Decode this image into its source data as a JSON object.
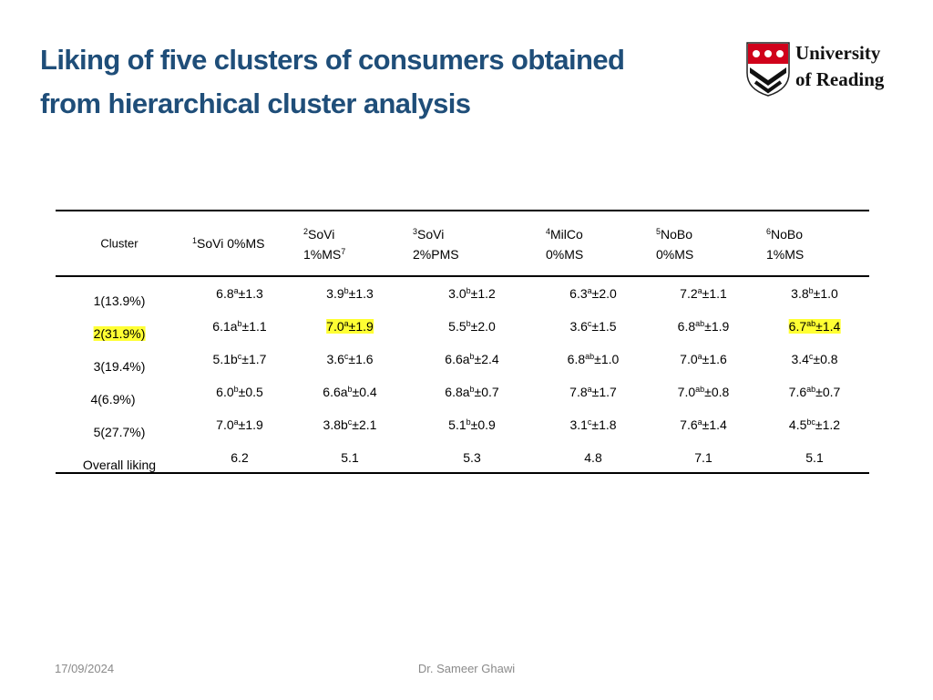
{
  "header": {
    "title": [
      "Liking of five clusters of consumers obtained",
      "from hierarchical cluster analysis"
    ],
    "logo": {
      "line1": "University",
      "line2": "of Reading"
    }
  },
  "table": {
    "columns": [
      {
        "label": "Cluster"
      },
      {
        "sup": "1",
        "line1": "SoVi 0%MS"
      },
      {
        "sup": "2",
        "line1": "SoVi",
        "line2": "1%MS",
        "line2_sup": "7"
      },
      {
        "sup": "3",
        "line1": "SoVi",
        "line2": "2%PMS"
      },
      {
        "sup": "4",
        "line1": "MilCo",
        "line2": "0%MS"
      },
      {
        "sup": "5",
        "line1": "NoBo",
        "line2": "0%MS"
      },
      {
        "sup": "6",
        "line1": "NoBo",
        "line2": "1%MS"
      }
    ],
    "rows": [
      {
        "label": "1(13.9%)",
        "cells": [
          {
            "pre": "6.8",
            "sup": "a",
            "post": "±1.3"
          },
          {
            "pre": "3.9",
            "sup": "b",
            "post": "±1.3"
          },
          {
            "pre": "3.0",
            "sup": "b",
            "post": "±1.2"
          },
          {
            "pre": "6.3",
            "sup": "a",
            "post": "±2.0"
          },
          {
            "pre": "7.2",
            "sup": "a",
            "post": "±1.1"
          },
          {
            "pre": "3.8",
            "sup": "b",
            "post": "±1.0"
          }
        ]
      },
      {
        "label": "2(31.9%)",
        "highlight": true,
        "cells": [
          {
            "pre": "6.1a",
            "sup": "b",
            "post": "±1.1"
          },
          {
            "pre": "7.0",
            "sup": "a",
            "post": "±1.9",
            "highlight": true
          },
          {
            "pre": "5.5",
            "sup": "b",
            "post": "±2.0"
          },
          {
            "pre": "3.6",
            "sup": "c",
            "post": "±1.5"
          },
          {
            "pre": "6.8",
            "sup": "ab",
            "post": "±1.9"
          },
          {
            "pre": "6.7",
            "sup": "ab",
            "post": "±1.4",
            "highlight": true
          }
        ]
      },
      {
        "label": "3(19.4%)",
        "cells": [
          {
            "pre": "5.1b",
            "sup": "c",
            "post": "±1.7"
          },
          {
            "pre": "3.6",
            "sup": "c",
            "post": "±1.6"
          },
          {
            "pre": "6.6a",
            "sup": "b",
            "post": "±2.4"
          },
          {
            "pre": "6.8",
            "sup": "ab",
            "post": "±1.0"
          },
          {
            "pre": "7.0",
            "sup": "a",
            "post": "±1.6"
          },
          {
            "pre": "3.4",
            "sup": "c",
            "post": "±0.8"
          }
        ]
      },
      {
        "label": "4(6.9%)",
        "cells": [
          {
            "pre": "6.0",
            "sup": "b",
            "post": "±0.5"
          },
          {
            "pre": "6.6a",
            "sup": "b",
            "post": "±0.4"
          },
          {
            "pre": "6.8a",
            "sup": "b",
            "post": "±0.7"
          },
          {
            "pre": "7.8",
            "sup": "a",
            "post": "±1.7"
          },
          {
            "pre": "7.0",
            "sup": "ab",
            "post": "±0.8"
          },
          {
            "pre": "7.6",
            "sup": "ab",
            "post": "±0.7"
          }
        ]
      },
      {
        "label": "5(27.7%)",
        "cells": [
          {
            "pre": "7.0",
            "sup": "a",
            "post": "±1.9"
          },
          {
            "pre": "3.8b",
            "sup": "c",
            "post": "±2.1"
          },
          {
            "pre": "5.1",
            "sup": "b",
            "post": "±0.9"
          },
          {
            "pre": "3.1",
            "sup": "c",
            "post": "±1.8"
          },
          {
            "pre": "7.6",
            "sup": "a",
            "post": "±1.4"
          },
          {
            "pre": "4.5",
            "sup": "bc",
            "post": "±1.2"
          }
        ]
      },
      {
        "label": "Overall liking",
        "cells": [
          "6.2",
          "5.1",
          "5.3",
          "4.8",
          "7.1",
          "5.1"
        ]
      }
    ]
  },
  "footer": {
    "date": "17/09/2024",
    "author": "Dr. Sameer Ghawi"
  }
}
